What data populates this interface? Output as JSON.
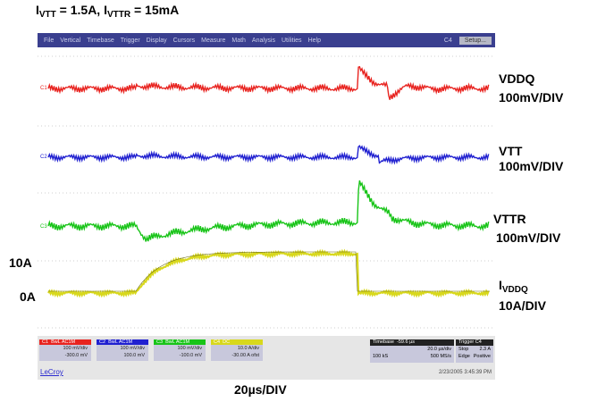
{
  "title": {
    "main": "I",
    "sub1": "VTT",
    "mid": " = 1.5A, I",
    "sub2": "VTTR",
    "end": " = 15mA"
  },
  "menu": {
    "items": [
      "File",
      "Vertical",
      "Timebase",
      "Trigger",
      "Display",
      "Cursors",
      "Measure",
      "Math",
      "Analysis",
      "Utilities",
      "Help"
    ],
    "channel": "C4",
    "setup": "Setup..."
  },
  "channels": [
    {
      "id": "C1",
      "color": "#e8231f",
      "name": "VDDQ",
      "scale": "100mV/DIV",
      "box_hdr": "BwL AC1M",
      "line1": "100 mV/div",
      "line2": "-300.0 mV"
    },
    {
      "id": "C2",
      "color": "#2020d0",
      "name": "VTT",
      "scale": "100mV/DIV",
      "box_hdr": "BwL AC1M",
      "line1": "100 mV/div",
      "line2": "100.0 mV"
    },
    {
      "id": "C3",
      "color": "#18c418",
      "name": "VTTR",
      "scale": "100mV/DIV",
      "box_hdr": "BwL AC1M",
      "line1": "100 mV/div",
      "line2": "-100.0 mV"
    },
    {
      "id": "C4",
      "color": "#d8d81c",
      "name_main": "I",
      "name_sub": "VDDQ",
      "scale": "10A/DIV",
      "box_hdr": "DC",
      "line1": "10.0 A/div",
      "line2": "-30.00 A ofst"
    }
  ],
  "levels": {
    "high": "10A",
    "low": "0A"
  },
  "timebase": {
    "hdr": "Timebase",
    "offset": "-59.6 µs",
    "line1": "20.0 µs/div",
    "line2a": "100 kS",
    "line2b": "500 MS/s"
  },
  "trigger": {
    "hdr": "Trigger",
    "ch": "C4",
    "mode": "Stop",
    "level": "2.3 A",
    "type": "Edge",
    "slope": "Positive"
  },
  "brand": "LeCroy",
  "date": "2/23/2005 3:45:39 PM",
  "x_scale": "20µs/DIV",
  "colors": {
    "menubar": "#3a3f8f",
    "panel": "#e6e6e6",
    "trace_red": "#e8231f",
    "trace_blue": "#2020d0",
    "trace_green": "#18c418",
    "trace_yellow": "#d8d81c"
  }
}
